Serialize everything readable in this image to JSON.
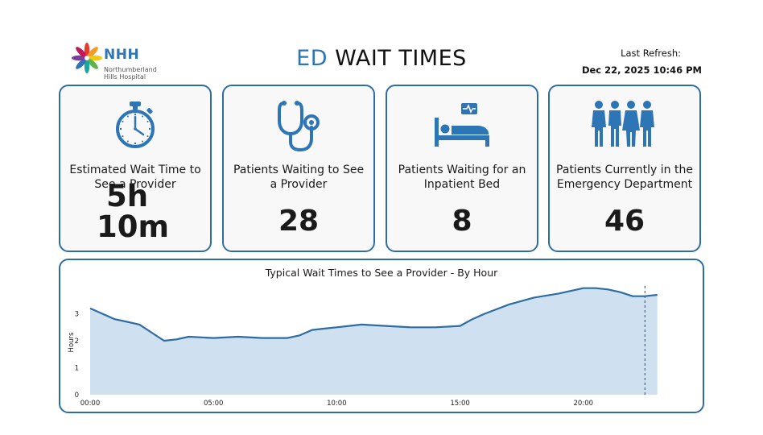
{
  "header": {
    "logo": {
      "abbr": "NHH",
      "name_line1": "Northumberland",
      "name_line2": "Hills Hospital"
    },
    "title_accent": "ED",
    "title_rest": "WAIT TIMES",
    "refresh_label": "Last Refresh:",
    "refresh_value": "Dec 22, 2025 10:46 PM"
  },
  "cards": [
    {
      "icon": "stopwatch-icon",
      "label": "Estimated Wait Time to See a Provider",
      "value_line1": "5h",
      "value_line2": "10m"
    },
    {
      "icon": "stethoscope-icon",
      "label": "Patients Waiting to See a Provider",
      "value": "28"
    },
    {
      "icon": "hospital-bed-icon",
      "label": "Patients Waiting for an Inpatient Bed",
      "value": "8"
    },
    {
      "icon": "people-icon",
      "label": "Patients Currently in the Emergency Department",
      "value": "46"
    }
  ],
  "colors": {
    "accent": "#2e75b6",
    "card_border": "#2e6da4",
    "icon": "#2e75b6",
    "area_fill": "#cfe0f1",
    "line": "#2e6da4"
  },
  "chart_data": {
    "type": "area",
    "title": "Typical Wait Times to See a Provider - By Hour",
    "xlabel": "",
    "ylabel": "Hours",
    "x_ticks": [
      "00:00",
      "05:00",
      "10:00",
      "15:00",
      "20:00"
    ],
    "y_ticks": [
      "0",
      "1",
      "2",
      "3"
    ],
    "ylim": [
      0,
      4.0
    ],
    "xlim": [
      0,
      23.5
    ],
    "grid": false,
    "current_marker": 22.5,
    "x": [
      0,
      0.5,
      1,
      1.5,
      2,
      2.5,
      3,
      3.5,
      4,
      5,
      6,
      7,
      8,
      8.5,
      9,
      9.5,
      10,
      10.5,
      11,
      12,
      13,
      14,
      15,
      15.5,
      16,
      17,
      18,
      19,
      20,
      20.5,
      21,
      21.5,
      22,
      22.5,
      23
    ],
    "values": [
      3.2,
      3.0,
      2.8,
      2.7,
      2.6,
      2.3,
      2.0,
      2.05,
      2.15,
      2.1,
      2.15,
      2.1,
      2.1,
      2.2,
      2.4,
      2.45,
      2.5,
      2.55,
      2.6,
      2.55,
      2.5,
      2.5,
      2.55,
      2.8,
      3.0,
      3.35,
      3.6,
      3.75,
      3.95,
      3.95,
      3.9,
      3.8,
      3.65,
      3.65,
      3.7
    ]
  }
}
